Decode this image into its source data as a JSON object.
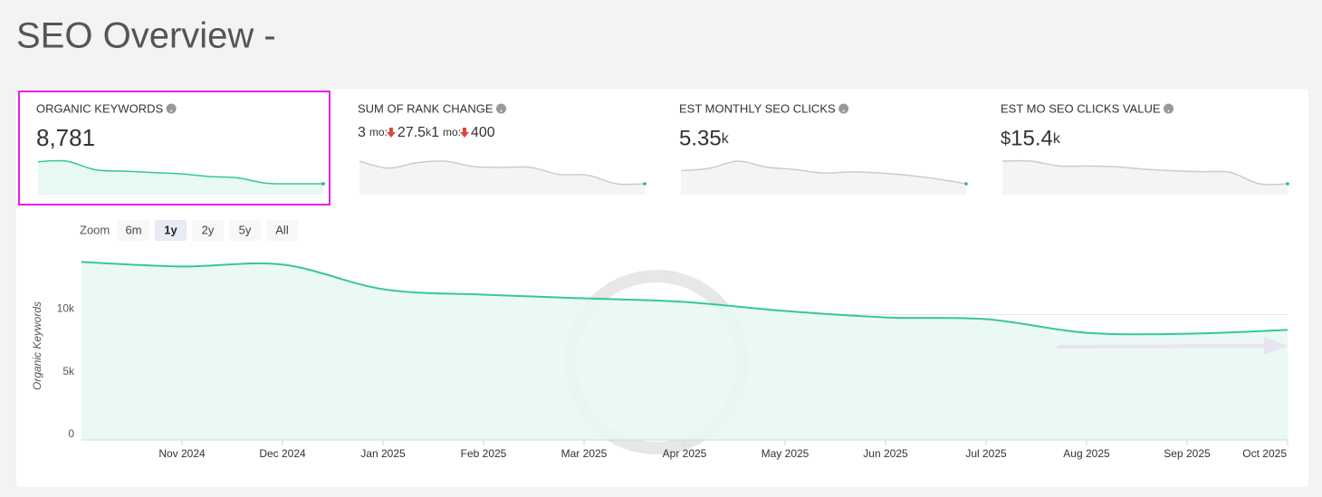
{
  "header": {
    "title": "SEO Overview -"
  },
  "metrics": [
    {
      "label": "ORGANIC KEYWORDS",
      "value": "8,781",
      "highlight": true,
      "sparkline": [
        9600,
        9620,
        9300,
        9250,
        9200,
        9150,
        9050,
        9000,
        8800,
        8780,
        8781
      ]
    },
    {
      "label": "SUM OF RANK CHANGE",
      "changes": [
        {
          "count": "3",
          "period": "mo:",
          "value": "27.5",
          "suffix": "k"
        },
        {
          "count": "1",
          "period": "mo:",
          "value": "400"
        }
      ],
      "sparkline": [
        -5,
        -14,
        -7,
        -5,
        -12,
        -13,
        -13,
        -22,
        -23,
        -34,
        -34
      ]
    },
    {
      "label": "EST MONTHLY SEO CLICKS",
      "value": "5.35",
      "suffix": "k",
      "sparkline": [
        5.9,
        6.0,
        6.3,
        6.05,
        5.95,
        5.8,
        5.85,
        5.8,
        5.7,
        5.55,
        5.35
      ]
    },
    {
      "label": "EST MO SEO CLICKS VALUE",
      "prefix": "$",
      "value": "15.4",
      "suffix": "k",
      "sparkline": [
        18.2,
        18.2,
        17.6,
        17.6,
        17.5,
        17.2,
        17.0,
        16.9,
        16.8,
        15.4,
        15.4
      ]
    }
  ],
  "zoom": {
    "label": "Zoom",
    "options": [
      "6m",
      "1y",
      "2y",
      "5y",
      "All"
    ],
    "selected": 1
  },
  "chart_data": {
    "type": "area",
    "y_label": "Organic Keywords",
    "categories": [
      null,
      "Nov 2024",
      "Dec 2024",
      "Jan 2025",
      "Feb 2025",
      "Mar 2025",
      "Apr 2025",
      "May 2025",
      "Jun 2025",
      "Jul 2025",
      "Aug 2025",
      "Sep 2025",
      "Oct 2025"
    ],
    "values": [
      14200,
      13840,
      13990,
      12030,
      11590,
      11300,
      11010,
      10290,
      9780,
      9640,
      8550,
      8480,
      8781
    ],
    "color": "#36c98e",
    "fill": "#e8f8f2",
    "ylim": [
      0,
      15600
    ],
    "yticks": [
      0,
      {
        "value": 5000,
        "label": "5k"
      },
      {
        "value": 10000,
        "label": "10k"
      }
    ],
    "grid": true
  }
}
